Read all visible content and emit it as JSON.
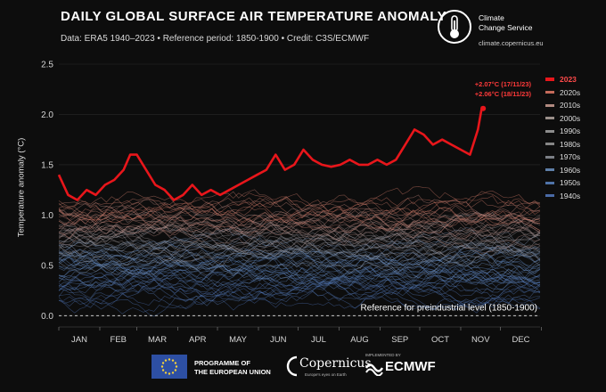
{
  "header": {
    "title": "DAILY GLOBAL SURFACE AIR TEMPERATURE ANOMALY",
    "subtitle": "Data: ERA5 1940–2023 • Reference period: 1850-1900 • Credit: C3S/ECMWF"
  },
  "branding": {
    "c3s_line1": "Climate",
    "c3s_line2": "Change Service",
    "c3s_url": "climate.copernicus.eu"
  },
  "footer": {
    "eu_line1": "PROGRAMME OF",
    "eu_line2": "THE EUROPEAN UNION",
    "copernicus_name": "Copernicus",
    "copernicus_tagline": "Europe's eyes on Earth",
    "implemented_by": "IMPLEMENTED BY",
    "ecmwf_name": "ECMWF"
  },
  "chart_data": {
    "type": "line",
    "ylabel": "Temperature anomaly (°C)",
    "ylim": [
      -0.05,
      2.5
    ],
    "yticks": [
      "0.0",
      "0.5",
      "1.0",
      "1.5",
      "2.0",
      "2.5"
    ],
    "months": [
      "JAN",
      "FEB",
      "MAR",
      "APR",
      "MAY",
      "JUN",
      "JUL",
      "AUG",
      "SEP",
      "OCT",
      "NOV",
      "DEC"
    ],
    "reference_label": "Reference for preindustrial level (1850-1900)",
    "annotations": [
      {
        "text": "+2.07°C (17/11/23)",
        "day": 321,
        "value": 2.07
      },
      {
        "text": "+2.06°C (18/11/23)",
        "day": 322,
        "value": 2.06
      }
    ],
    "legend": [
      {
        "name": "2023",
        "color": "#e8161b"
      },
      {
        "name": "2020s",
        "color": "#c46a5a"
      },
      {
        "name": "2010s",
        "color": "#b08a80"
      },
      {
        "name": "2000s",
        "color": "#9a8f8a"
      },
      {
        "name": "1990s",
        "color": "#8c8c8c"
      },
      {
        "name": "1980s",
        "color": "#868686"
      },
      {
        "name": "1970s",
        "color": "#7b7f86"
      },
      {
        "name": "1960s",
        "color": "#5f7fa8"
      },
      {
        "name": "1950s",
        "color": "#4f73a8"
      },
      {
        "name": "1940s",
        "color": "#4a6aa6"
      }
    ],
    "series": [
      {
        "name": "2023",
        "color": "#e8161b",
        "x": [
          1,
          8,
          15,
          22,
          29,
          36,
          43,
          50,
          55,
          60,
          67,
          74,
          81,
          88,
          95,
          102,
          109,
          116,
          123,
          130,
          137,
          144,
          151,
          158,
          165,
          172,
          179,
          186,
          193,
          200,
          207,
          214,
          221,
          228,
          235,
          242,
          249,
          256,
          263,
          270,
          277,
          284,
          291,
          298,
          305,
          312,
          318,
          321,
          322
        ],
        "y": [
          1.4,
          1.2,
          1.15,
          1.25,
          1.2,
          1.3,
          1.35,
          1.45,
          1.6,
          1.6,
          1.45,
          1.3,
          1.25,
          1.15,
          1.2,
          1.3,
          1.2,
          1.25,
          1.2,
          1.25,
          1.3,
          1.35,
          1.4,
          1.45,
          1.6,
          1.45,
          1.5,
          1.65,
          1.55,
          1.5,
          1.48,
          1.5,
          1.55,
          1.5,
          1.5,
          1.55,
          1.5,
          1.55,
          1.7,
          1.85,
          1.8,
          1.7,
          1.75,
          1.7,
          1.65,
          1.6,
          1.85,
          2.07,
          2.06
        ]
      }
    ],
    "background_traces": {
      "years": "1940–2022",
      "decades": [
        "2020s",
        "2010s",
        "2000s",
        "1990s",
        "1980s",
        "1970s",
        "1960s",
        "1950s",
        "1940s"
      ]
    }
  }
}
